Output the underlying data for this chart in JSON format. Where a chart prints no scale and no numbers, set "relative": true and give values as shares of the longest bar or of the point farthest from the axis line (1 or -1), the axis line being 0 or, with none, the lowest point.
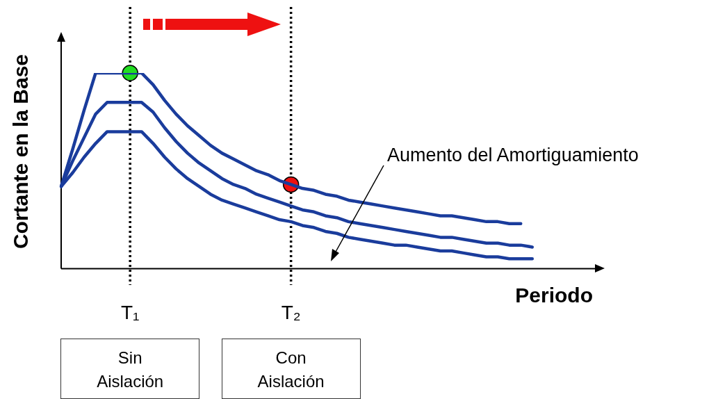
{
  "chart_data": {
    "type": "line",
    "relative": true,
    "xlabel": "Periodo",
    "ylabel": "Cortante en la Base",
    "categories": [
      null,
      null,
      null,
      null,
      null,
      null,
      "T₁",
      null,
      null,
      null,
      null,
      null,
      null,
      null,
      null,
      null,
      null,
      null,
      null,
      null,
      "T₂",
      null,
      null,
      null,
      null,
      null,
      null,
      null,
      null,
      null,
      null,
      null,
      null,
      null,
      null,
      null,
      null,
      null,
      null,
      null,
      null,
      null,
      null,
      null,
      null,
      null,
      null,
      null
    ],
    "series": [
      {
        "color": "#1a3c9c",
        "values": [
          0.42,
          0.61,
          0.81,
          1,
          1,
          1,
          1,
          1,
          0.94,
          0.86,
          0.79,
          0.73,
          0.68,
          0.63,
          0.59,
          0.56,
          0.53,
          0.5,
          0.48,
          0.45,
          0.43,
          0.41,
          0.4,
          0.38,
          0.37,
          0.35,
          0.34,
          0.33,
          0.32,
          0.31,
          0.3,
          0.29,
          0.28,
          0.27,
          0.27,
          0.26,
          0.25,
          0.24,
          0.24,
          0.23,
          0.23,
          null,
          null,
          null,
          null,
          null,
          null,
          null
        ]
      },
      {
        "color": "#1a3c9c",
        "values": [
          0.42,
          0.55,
          0.67,
          0.79,
          0.85,
          0.85,
          0.85,
          0.85,
          0.8,
          0.72,
          0.65,
          0.59,
          0.54,
          0.5,
          0.46,
          0.43,
          0.41,
          0.38,
          0.36,
          0.34,
          0.32,
          0.3,
          0.29,
          0.27,
          0.26,
          0.24,
          0.23,
          0.22,
          0.21,
          0.2,
          0.19,
          0.18,
          0.17,
          0.16,
          0.16,
          0.15,
          0.14,
          0.13,
          0.13,
          0.12,
          0.12,
          0.11,
          null,
          null,
          null,
          null,
          null,
          null
        ]
      },
      {
        "color": "#1a3c9c",
        "values": [
          0.42,
          0.49,
          0.57,
          0.64,
          0.7,
          0.7,
          0.7,
          0.7,
          0.64,
          0.57,
          0.51,
          0.46,
          0.42,
          0.38,
          0.35,
          0.33,
          0.31,
          0.29,
          0.27,
          0.25,
          0.24,
          0.22,
          0.21,
          0.19,
          0.18,
          0.16,
          0.15,
          0.14,
          0.13,
          0.12,
          0.12,
          0.11,
          0.1,
          0.09,
          0.09,
          0.08,
          0.07,
          0.06,
          0.06,
          0.05,
          0.05,
          0.05,
          null,
          null,
          null,
          null,
          null,
          null
        ]
      },
      {
        "type": "scatter",
        "marker": "circle",
        "color": "#22dd22",
        "x": [
          "T₁"
        ],
        "values": [
          1
        ]
      },
      {
        "type": "scatter",
        "marker": "circle",
        "color": "#ee1111",
        "x": [
          "T₂"
        ],
        "values": [
          0.43
        ]
      }
    ],
    "ref_lines": [
      {
        "axis": "x",
        "value": "T₁",
        "color": "#000000",
        "line_style": "dotted"
      },
      {
        "axis": "x",
        "value": "T₂",
        "color": "#000000",
        "line_style": "dotted"
      }
    ],
    "annotations": [
      "Aumento del Amortiguamiento",
      "Sin Aislación",
      "Con Aislación"
    ],
    "tick_labels": "x",
    "grid": false,
    "legend": false,
    "marker": "none",
    "line_style": "solid"
  }
}
